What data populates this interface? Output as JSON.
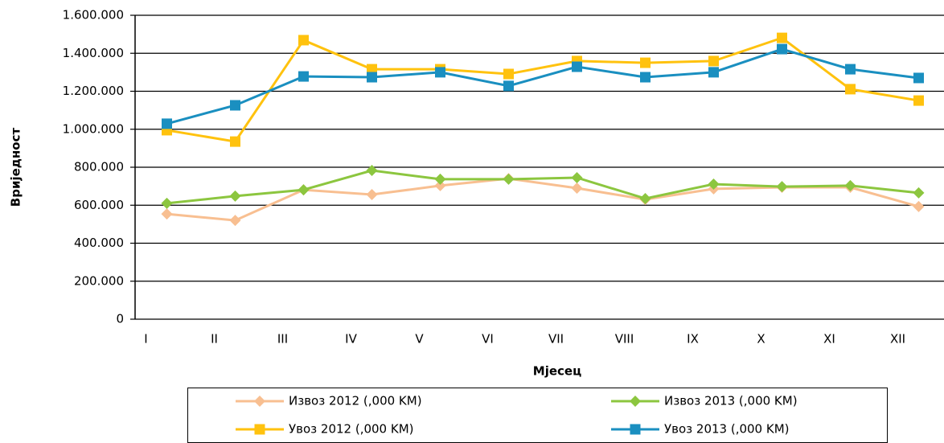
{
  "chart_data": {
    "type": "line",
    "x_label": "Мјесец",
    "y_label": "Вриједност",
    "categories": [
      "I",
      "II",
      "III",
      "IV",
      "V",
      "VI",
      "VII",
      "VIII",
      "IX",
      "X",
      "XI",
      "XII"
    ],
    "series": [
      {
        "name": "Извоз 2012 (,000 KM)",
        "color": "#f8bf91",
        "marker": "diamond",
        "values": [
          554000,
          520000,
          681000,
          656000,
          703000,
          740000,
          690000,
          630000,
          686000,
          694000,
          694000,
          593000
        ]
      },
      {
        "name": "Извоз 2013 (,000 KM)",
        "color": "#8cc63f",
        "marker": "diamond",
        "values": [
          610000,
          648000,
          681000,
          783000,
          737000,
          737000,
          745000,
          635000,
          711000,
          698000,
          703000,
          665000
        ]
      },
      {
        "name": "Увоз 2012 (,000 KM)",
        "color": "#ffc20e",
        "marker": "square",
        "values": [
          995000,
          935000,
          1469000,
          1316000,
          1316000,
          1291000,
          1359000,
          1350000,
          1359000,
          1481000,
          1211000,
          1151000
        ]
      },
      {
        "name": "Увоз 2013 (,000 KM)",
        "color": "#1a8fc0",
        "marker": "square",
        "values": [
          1029000,
          1126000,
          1278000,
          1274000,
          1300000,
          1228000,
          1329000,
          1274000,
          1300000,
          1422000,
          1316000,
          1270000
        ]
      }
    ],
    "ylim": [
      0,
      1600000
    ],
    "yticks": [
      0,
      {
        "value": 200000,
        "label": "200.000"
      },
      {
        "value": 400000,
        "label": "400.000"
      },
      {
        "value": 600000,
        "label": "600.000"
      },
      {
        "value": 800000,
        "label": "800.000"
      },
      {
        "value": 1000000,
        "label": "1.000.000"
      },
      {
        "value": 1200000,
        "label": "1.200.000"
      },
      {
        "value": 1400000,
        "label": "1.400.000"
      },
      {
        "value": 1600000,
        "label": "1.600.000"
      }
    ],
    "grid": true,
    "legend": "bottom"
  }
}
